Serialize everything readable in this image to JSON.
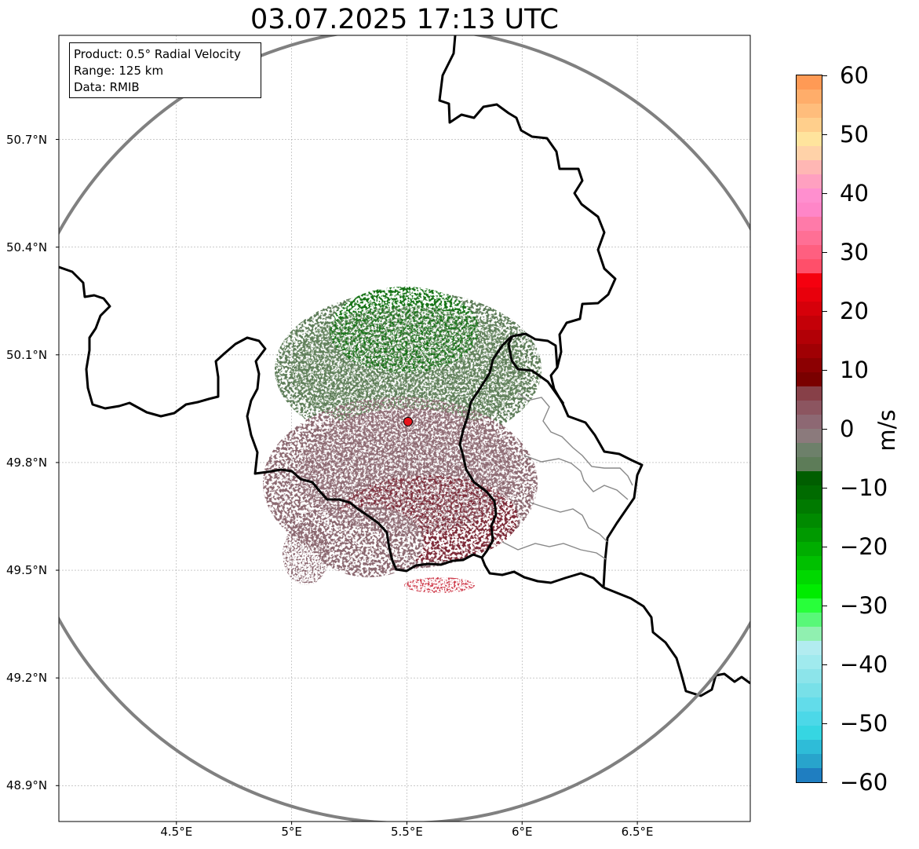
{
  "title": "03.07.2025 17:13 UTC",
  "info_box": {
    "product": "Product: 0.5° Radial Velocity",
    "range": "Range: 125 km",
    "data": "Data: RMIB"
  },
  "map": {
    "lon_range": [
      3.99,
      6.99
    ],
    "lat_range": [
      48.8,
      50.99
    ],
    "radar_site": {
      "lon": 5.505,
      "lat": 49.914
    },
    "range_ring_km": 125,
    "gridlines": true,
    "lat_ticks": [
      {
        "value": 50.7,
        "label": "50.7°N"
      },
      {
        "value": 50.4,
        "label": "50.4°N"
      },
      {
        "value": 50.1,
        "label": "50.1°N"
      },
      {
        "value": 49.8,
        "label": "49.8°N"
      },
      {
        "value": 49.5,
        "label": "49.5°N"
      },
      {
        "value": 49.2,
        "label": "49.2°N"
      },
      {
        "value": 48.9,
        "label": "48.9°N"
      }
    ],
    "lon_ticks": [
      {
        "value": 4.5,
        "label": "4.5°E"
      },
      {
        "value": 5.0,
        "label": "5°E"
      },
      {
        "value": 5.5,
        "label": "5.5°E"
      },
      {
        "value": 6.0,
        "label": "6°E"
      },
      {
        "value": 6.5,
        "label": "6.5°E"
      }
    ]
  },
  "colorbar": {
    "unit": "m/s",
    "min": -60,
    "max": 60,
    "tick_labels": [
      "60",
      "50",
      "40",
      "30",
      "20",
      "10",
      "0",
      "−10",
      "−20",
      "−30",
      "−40",
      "−50",
      "−60"
    ],
    "colors_top_to_bottom": [
      "#ff9a55",
      "#ffad6a",
      "#ffbd7c",
      "#ffcf8c",
      "#ffe49d",
      "#ffd2a8",
      "#ffb7b4",
      "#ffa0c0",
      "#ff8fcf",
      "#ff86c8",
      "#ff7aa9",
      "#ff6f95",
      "#ff5f80",
      "#ff4f6a",
      "#f5000f",
      "#e8000c",
      "#d6000a",
      "#c40008",
      "#b20006",
      "#a00004",
      "#8c0002",
      "#7a0000",
      "#874048",
      "#8c5560",
      "#8d6873",
      "#8b7a7c",
      "#6d806a",
      "#5d7c58",
      "#005e00",
      "#006b00",
      "#007a00",
      "#008a00",
      "#009a00",
      "#00ad00",
      "#00c000",
      "#00d800",
      "#00ec00",
      "#28ff3a",
      "#58f878",
      "#90f0b0",
      "#b2ecf0",
      "#a0eaee",
      "#8ce4ea",
      "#78e0e8",
      "#62dcea",
      "#4cd8e8",
      "#36d6e2",
      "#2ebcd8",
      "#28a4cc",
      "#1f7ec1"
    ]
  },
  "colors": {
    "border": "#000000",
    "range_ring": "#808080",
    "inner_border": "#888888",
    "radar_marker": "#e8141c",
    "approaching": "#5d7c58",
    "receding": "#8b6870"
  }
}
